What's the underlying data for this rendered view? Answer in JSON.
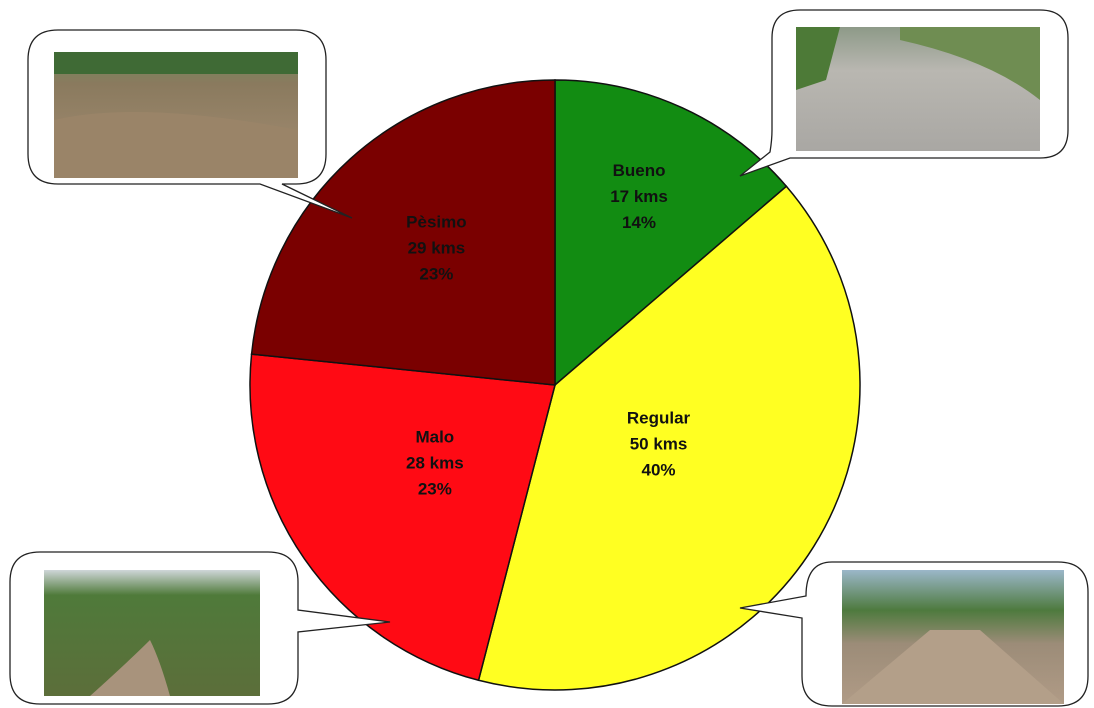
{
  "chart_data": {
    "type": "pie",
    "title": "",
    "slices": [
      {
        "category": "Bueno",
        "value": 17,
        "value_label": "17 kms",
        "percent_label": "14%",
        "color": "#128c12"
      },
      {
        "category": "Regular",
        "value": 50,
        "value_label": "50 kms",
        "percent_label": "40%",
        "color": "#ffff22"
      },
      {
        "category": "Malo",
        "value": 28,
        "value_label": "28 kms",
        "percent_label": "23%",
        "color": "#ff0a14"
      },
      {
        "category": "Pèsimo",
        "value": 29,
        "value_label": "29 kms",
        "percent_label": "23%",
        "color": "#7a0000"
      }
    ],
    "start_angle": "12 o'clock",
    "direction": "clockwise",
    "legend": "none"
  },
  "callouts": [
    {
      "slice": "Pèsimo",
      "photo": "eroded dirt road with rubble"
    },
    {
      "slice": "Bueno",
      "photo": "smooth gravel road"
    },
    {
      "slice": "Malo",
      "photo": "narrow dirt track through vegetation"
    },
    {
      "slice": "Regular",
      "photo": "wide dirt road between trees"
    }
  ]
}
